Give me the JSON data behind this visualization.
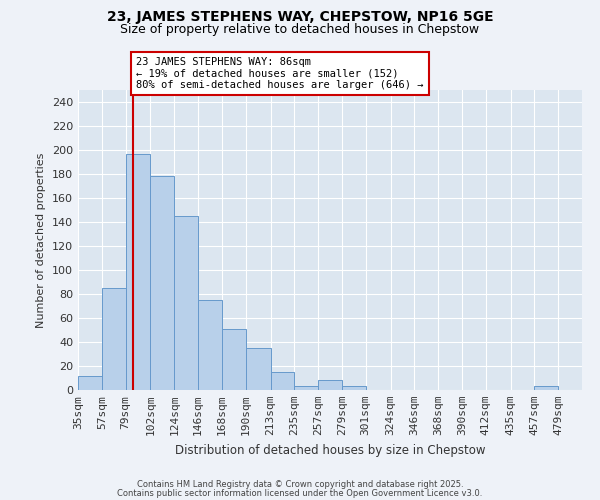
{
  "title": "23, JAMES STEPHENS WAY, CHEPSTOW, NP16 5GE",
  "subtitle": "Size of property relative to detached houses in Chepstow",
  "xlabel": "Distribution of detached houses by size in Chepstow",
  "ylabel": "Number of detached properties",
  "bar_labels": [
    "35sqm",
    "57sqm",
    "79sqm",
    "102sqm",
    "124sqm",
    "146sqm",
    "168sqm",
    "190sqm",
    "213sqm",
    "235sqm",
    "257sqm",
    "279sqm",
    "301sqm",
    "324sqm",
    "346sqm",
    "368sqm",
    "390sqm",
    "412sqm",
    "435sqm",
    "457sqm",
    "479sqm"
  ],
  "bar_edges": [
    35,
    57,
    79,
    102,
    124,
    146,
    168,
    190,
    213,
    235,
    257,
    279,
    301,
    324,
    346,
    368,
    390,
    412,
    435,
    457,
    479,
    501
  ],
  "bar_color": "#b8d0ea",
  "bar_edgecolor": "#6699cc",
  "bar_heights": [
    12,
    85,
    197,
    178,
    145,
    75,
    51,
    35,
    15,
    3,
    8,
    3,
    0,
    0,
    0,
    0,
    0,
    0,
    0,
    3,
    0
  ],
  "vline_x": 86,
  "vline_color": "#cc0000",
  "ylim": [
    0,
    250
  ],
  "yticks": [
    0,
    20,
    40,
    60,
    80,
    100,
    120,
    140,
    160,
    180,
    200,
    220,
    240
  ],
  "annotation_title": "23 JAMES STEPHENS WAY: 86sqm",
  "annotation_line1": "← 19% of detached houses are smaller (152)",
  "annotation_line2": "80% of semi-detached houses are larger (646) →",
  "annotation_box_color": "#ffffff",
  "annotation_box_edgecolor": "#cc0000",
  "footer1": "Contains HM Land Registry data © Crown copyright and database right 2025.",
  "footer2": "Contains public sector information licensed under the Open Government Licence v3.0.",
  "bg_color": "#eef2f8",
  "plot_bg_color": "#dce6f0",
  "grid_color": "#ffffff",
  "title_fontsize": 10,
  "subtitle_fontsize": 9
}
